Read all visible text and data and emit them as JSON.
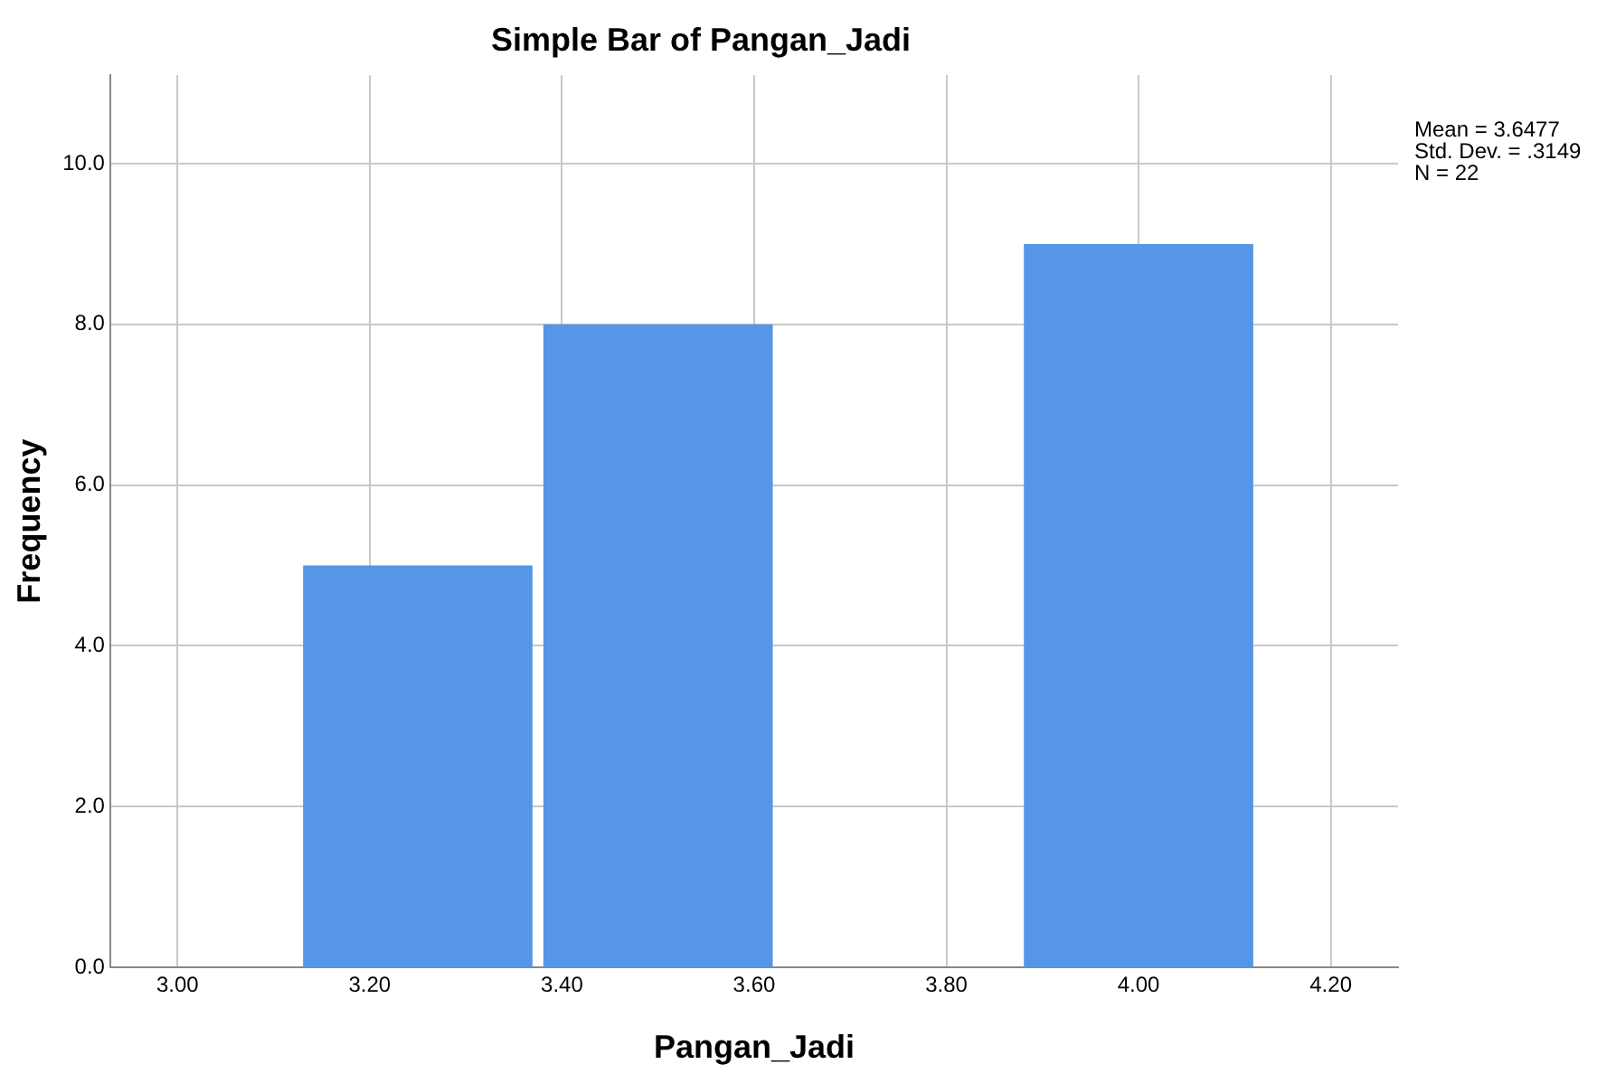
{
  "chart_data": {
    "type": "histogram",
    "title": "Simple Bar of Pangan_Jadi",
    "xlabel": "Pangan_Jadi",
    "ylabel": "Frequency",
    "bins": [
      3.125,
      3.375,
      3.625,
      3.875,
      4.125
    ],
    "values": [
      5,
      8,
      0,
      9
    ],
    "color": "#5596e6",
    "xlim": [
      2.93,
      4.27
    ],
    "xticks": [
      {
        "value": 3.0,
        "label": "3.00"
      },
      {
        "value": 3.2,
        "label": "3.20"
      },
      {
        "value": 3.4,
        "label": "3.40"
      },
      {
        "value": 3.6,
        "label": "3.60"
      },
      {
        "value": 3.8,
        "label": "3.80"
      },
      {
        "value": 4.0,
        "label": "4.00"
      },
      {
        "value": 4.2,
        "label": "4.20"
      }
    ],
    "ylim": [
      0,
      11.1
    ],
    "yticks": [
      {
        "value": 0,
        "label": "0.0"
      },
      {
        "value": 2,
        "label": "2.0"
      },
      {
        "value": 4,
        "label": "4.0"
      },
      {
        "value": 6,
        "label": "6.0"
      },
      {
        "value": 8,
        "label": "8.0"
      },
      {
        "value": 10,
        "label": "10.0"
      }
    ],
    "grid": true,
    "legend": false,
    "annotations": [
      "Mean = 3.6477",
      "Std. Dev. = .3149",
      "N = 22"
    ]
  }
}
